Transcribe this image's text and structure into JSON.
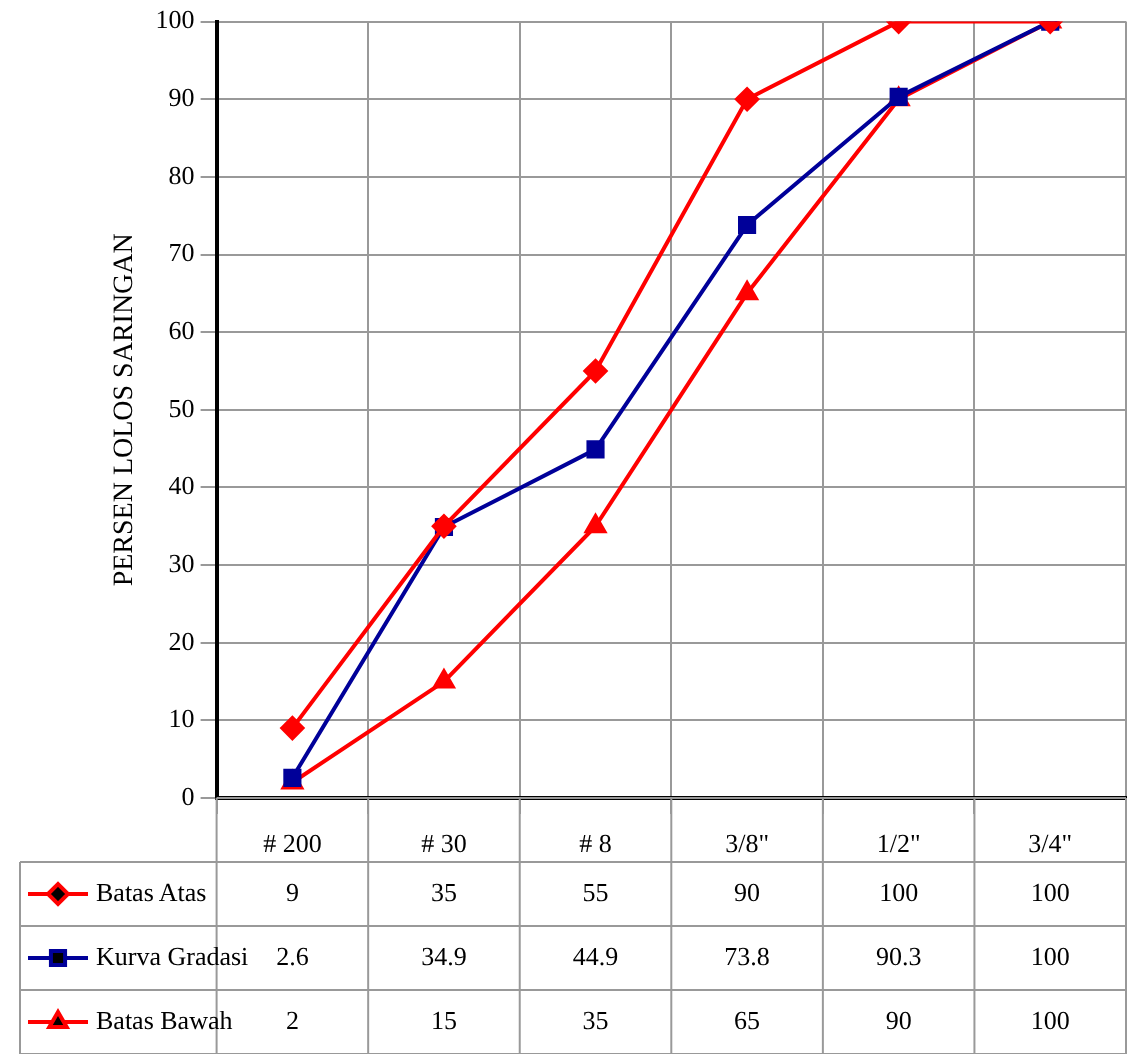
{
  "chart_data": {
    "type": "line",
    "ylabel": "PERSEN LOLOS SARINGAN",
    "categories": [
      "# 200",
      "# 30",
      "# 8",
      "3/8\"",
      "1/2\"",
      "3/4\""
    ],
    "series": [
      {
        "name": "Batas Atas",
        "color": "#ff0000",
        "marker": "diamond",
        "values": [
          9,
          35,
          55,
          90,
          100,
          100
        ]
      },
      {
        "name": "Kurva Gradasi",
        "color": "#000099",
        "marker": "square",
        "values": [
          2.6,
          34.9,
          44.9,
          73.8,
          90.3,
          100
        ]
      },
      {
        "name": "Batas Bawah",
        "color": "#ff0000",
        "marker": "triangle",
        "values": [
          2,
          15,
          35,
          65,
          90,
          100
        ]
      }
    ],
    "ylim": [
      0,
      100
    ],
    "yticks": [
      0,
      10,
      20,
      30,
      40,
      50,
      60,
      70,
      80,
      90,
      100
    ],
    "grid": true,
    "legend": "bottom",
    "data_labels": true
  }
}
